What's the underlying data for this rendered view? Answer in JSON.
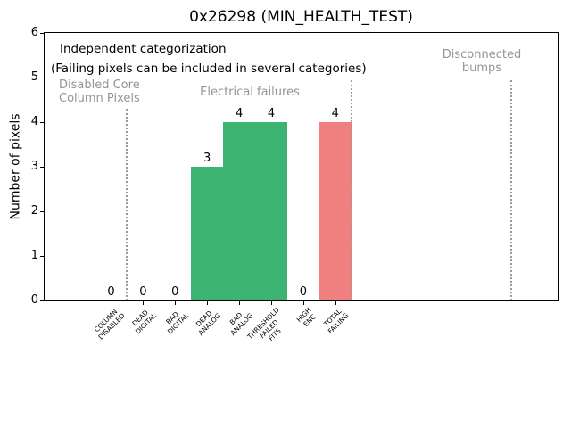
{
  "figure": {
    "note_line1": "Independent categorization",
    "note_line2": "(Failing pixels can be included in several categories)",
    "region_labels": {
      "disabled_core": "Disabled Core\nColumn Pixels",
      "electrical": "Electrical failures",
      "disconnected": "Disconnected\nbumps"
    },
    "colors": {
      "category_bar": "#3cb371",
      "total_bar": "#f08080",
      "region_label_gray": "#949494",
      "separator_gray": "#999999",
      "axis": "#000000"
    }
  },
  "chart_data": {
    "type": "bar",
    "title": "0x26298 (MIN_HEALTH_TEST)",
    "xlabel": "",
    "ylabel": "Number of pixels",
    "ylim": [
      0,
      6
    ],
    "yticks": [
      0,
      1,
      2,
      3,
      4,
      5,
      6
    ],
    "grid": false,
    "legend": null,
    "categories": [
      "COLUMN\nDISABLED",
      "DEAD\nDIGITAL",
      "BAD\nDIGITAL",
      "DEAD\nANALOG",
      "BAD\nANALOG",
      "THRESHOLD\nFAILED\nFITS",
      "HIGH\nENC",
      "TOTAL\nFAILING"
    ],
    "values": [
      0,
      0,
      0,
      3,
      4,
      4,
      0,
      4
    ],
    "bar_value_labels": [
      "0",
      "0",
      "0",
      "3",
      "4",
      "4",
      "0",
      "4"
    ],
    "bar_colors": [
      "#3cb371",
      "#3cb371",
      "#3cb371",
      "#3cb371",
      "#3cb371",
      "#3cb371",
      "#3cb371",
      "#f08080"
    ],
    "separators": [
      {
        "x": 0.5,
        "ymax": 4.3
      },
      {
        "x": 7.5,
        "ymax": 4.94
      },
      {
        "x": 12.5,
        "ymax": 4.94
      }
    ],
    "annotations": [
      "Independent categorization",
      "(Failing pixels can be included in several categories)",
      "Disabled Core\nColumn Pixels",
      "Electrical failures",
      "Disconnected\nbumps"
    ]
  }
}
